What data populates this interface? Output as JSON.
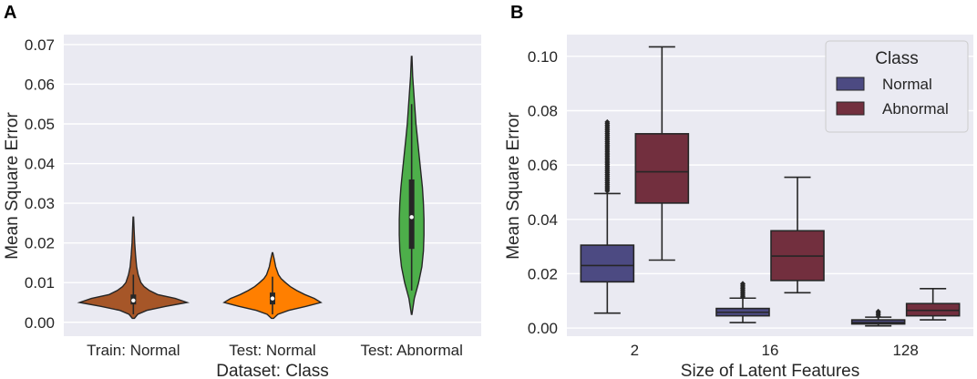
{
  "colors": {
    "background": "#eaeaf2",
    "train_normal": "#a65628",
    "test_normal": "#ff7f00",
    "test_abnormal": "#4daf4a",
    "normal": "#4c4a82",
    "abnormal": "#722f3e",
    "line": "#262626"
  },
  "chart_data": [
    {
      "panel_label": "A",
      "type": "violin",
      "xlabel": "Dataset: Class",
      "ylabel": "Mean Square Error",
      "ylim": [
        -0.0035,
        0.0725
      ],
      "yticks": [
        0.0,
        0.01,
        0.02,
        0.03,
        0.04,
        0.05,
        0.06,
        0.07
      ],
      "ytick_labels": [
        "0.00",
        "0.01",
        "0.02",
        "0.03",
        "0.04",
        "0.05",
        "0.06",
        "0.07"
      ],
      "categories": [
        "Train: Normal",
        "Test: Normal",
        "Test: Abnormal"
      ],
      "violins": [
        {
          "category": "Train: Normal",
          "color_key": "train_normal",
          "min": 0.001,
          "max": 0.0265,
          "q1": 0.0045,
          "median": 0.0055,
          "q3": 0.007,
          "whisker_low": 0.002,
          "whisker_high": 0.012,
          "density": [
            [
              0.001,
              0.02
            ],
            [
              0.002,
              0.08
            ],
            [
              0.003,
              0.25
            ],
            [
              0.004,
              0.6
            ],
            [
              0.005,
              1.0
            ],
            [
              0.006,
              0.78
            ],
            [
              0.007,
              0.45
            ],
            [
              0.008,
              0.3
            ],
            [
              0.009,
              0.2
            ],
            [
              0.01,
              0.14
            ],
            [
              0.012,
              0.09
            ],
            [
              0.014,
              0.06
            ],
            [
              0.017,
              0.04
            ],
            [
              0.02,
              0.025
            ],
            [
              0.023,
              0.015
            ],
            [
              0.0265,
              0.005
            ]
          ]
        },
        {
          "category": "Test: Normal",
          "color_key": "test_normal",
          "min": 0.001,
          "max": 0.0175,
          "q1": 0.0045,
          "median": 0.006,
          "q3": 0.0075,
          "whisker_low": 0.002,
          "whisker_high": 0.0115,
          "density": [
            [
              0.001,
              0.02
            ],
            [
              0.002,
              0.1
            ],
            [
              0.003,
              0.3
            ],
            [
              0.004,
              0.62
            ],
            [
              0.005,
              0.9
            ],
            [
              0.006,
              0.78
            ],
            [
              0.007,
              0.6
            ],
            [
              0.008,
              0.45
            ],
            [
              0.009,
              0.33
            ],
            [
              0.01,
              0.24
            ],
            [
              0.011,
              0.16
            ],
            [
              0.012,
              0.11
            ],
            [
              0.014,
              0.06
            ],
            [
              0.016,
              0.03
            ],
            [
              0.0175,
              0.005
            ]
          ]
        },
        {
          "category": "Test: Abnormal",
          "color_key": "test_abnormal",
          "min": 0.002,
          "max": 0.067,
          "q1": 0.0185,
          "median": 0.0265,
          "q3": 0.036,
          "whisker_low": 0.008,
          "whisker_high": 0.055,
          "density": [
            [
              0.002,
              0.005
            ],
            [
              0.006,
              0.05
            ],
            [
              0.01,
              0.13
            ],
            [
              0.014,
              0.19
            ],
            [
              0.018,
              0.22
            ],
            [
              0.022,
              0.23
            ],
            [
              0.026,
              0.23
            ],
            [
              0.03,
              0.22
            ],
            [
              0.034,
              0.2
            ],
            [
              0.038,
              0.17
            ],
            [
              0.042,
              0.14
            ],
            [
              0.046,
              0.11
            ],
            [
              0.05,
              0.08
            ],
            [
              0.054,
              0.06
            ],
            [
              0.058,
              0.04
            ],
            [
              0.062,
              0.02
            ],
            [
              0.067,
              0.005
            ]
          ]
        }
      ]
    },
    {
      "panel_label": "B",
      "type": "box",
      "xlabel": "Size of Latent Features",
      "ylabel": "Mean Square Error",
      "ylim": [
        -0.003,
        0.108
      ],
      "yticks": [
        0.0,
        0.02,
        0.04,
        0.06,
        0.08,
        0.1
      ],
      "ytick_labels": [
        "0.00",
        "0.02",
        "0.04",
        "0.06",
        "0.08",
        "0.10"
      ],
      "categories": [
        "2",
        "16",
        "128"
      ],
      "legend": {
        "title": "Class",
        "position": "top-right",
        "entries": [
          "Normal",
          "Abnormal"
        ]
      },
      "series": [
        {
          "name": "Normal",
          "color_key": "normal",
          "boxes": [
            {
              "category": "2",
              "whisker_low": 0.0055,
              "q1": 0.017,
              "median": 0.023,
              "q3": 0.0305,
              "whisker_high": 0.0495,
              "outliers_from": 0.0505,
              "outliers_to": 0.076
            },
            {
              "category": "16",
              "whisker_low": 0.002,
              "q1": 0.0045,
              "median": 0.0058,
              "q3": 0.0072,
              "whisker_high": 0.011,
              "outliers_from": 0.0115,
              "outliers_to": 0.0165
            },
            {
              "category": "128",
              "whisker_low": 0.0008,
              "q1": 0.0015,
              "median": 0.002,
              "q3": 0.003,
              "whisker_high": 0.004,
              "outliers_from": 0.0043,
              "outliers_to": 0.0062
            }
          ]
        },
        {
          "name": "Abnormal",
          "color_key": "abnormal",
          "boxes": [
            {
              "category": "2",
              "whisker_low": 0.025,
              "q1": 0.046,
              "median": 0.0575,
              "q3": 0.0715,
              "whisker_high": 0.1035
            },
            {
              "category": "16",
              "whisker_low": 0.013,
              "q1": 0.0175,
              "median": 0.0265,
              "q3": 0.0358,
              "whisker_high": 0.0555
            },
            {
              "category": "128",
              "whisker_low": 0.003,
              "q1": 0.0045,
              "median": 0.0065,
              "q3": 0.009,
              "whisker_high": 0.0145
            }
          ]
        }
      ]
    }
  ]
}
